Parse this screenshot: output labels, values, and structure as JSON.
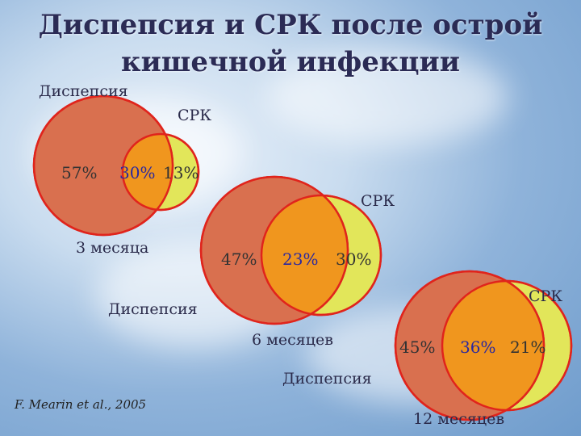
{
  "title": "Диспепсия и СРК после острой кишечной инфекции",
  "panels": [
    {
      "period": "3 месяца",
      "dyspepsia_label": "Диспепсия",
      "ibs_label": "СРК",
      "dyspepsia_only": "57%",
      "overlap": "30%",
      "ibs_only": "13%"
    },
    {
      "period": "6 месяцев",
      "dyspepsia_label": "Диспепсия",
      "ibs_label": "СРК",
      "dyspepsia_only": "47%",
      "overlap": "23%",
      "ibs_only": "30%"
    },
    {
      "period": "12 месяцев",
      "dyspepsia_label": "Диспепсия",
      "ibs_label": "СРК",
      "dyspepsia_only": "45%",
      "overlap": "36%",
      "ibs_only": "21%"
    }
  ],
  "citation": "F. Mearin  et al., 2005",
  "colors": {
    "dyspepsia_fill": "#d9704f",
    "ibs_fill": "#e2e65a",
    "overlap_fill": "#f0961e",
    "outline": "#e0241c"
  }
}
